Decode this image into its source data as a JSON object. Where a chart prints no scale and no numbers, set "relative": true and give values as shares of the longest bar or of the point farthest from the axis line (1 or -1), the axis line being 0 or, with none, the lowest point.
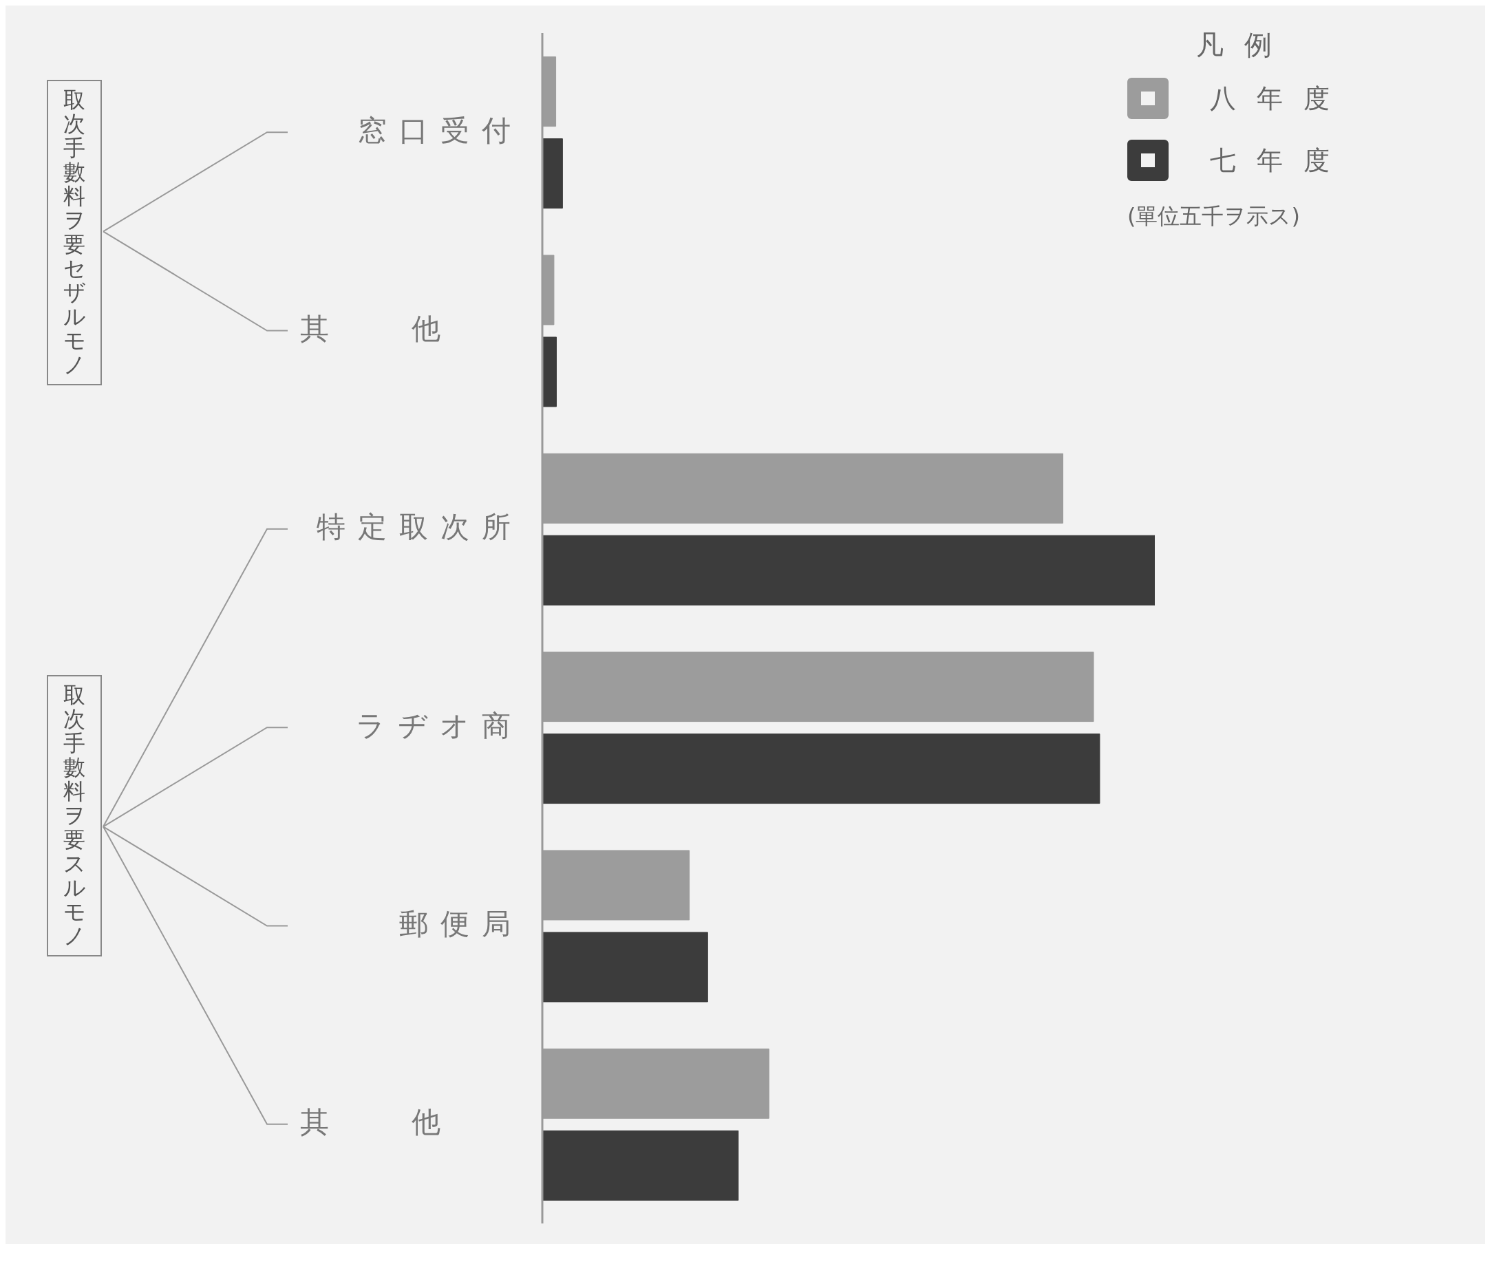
{
  "chart_data": {
    "type": "bar",
    "orientation": "horizontal",
    "relative": true,
    "legend_title": "凡例",
    "legend": "top right",
    "categories": [
      "窓口受付",
      "其他",
      "特定取次所",
      "ラヂオ商",
      "郵便局",
      "其他"
    ],
    "series": [
      {
        "name": "八年度",
        "color": "#9c9c9c",
        "values": [
          0.022,
          0.019,
          0.85,
          0.9,
          0.24,
          0.37
        ]
      },
      {
        "name": "七年度",
        "color": "#3c3c3c",
        "values": [
          0.033,
          0.023,
          1,
          0.91,
          0.27,
          0.32
        ]
      }
    ],
    "annotations": [
      "取次手數料ヲ要セザルモノ",
      "取次手數料ヲ要スルモノ",
      "(單位五千ヲ示ス)"
    ]
  }
}
